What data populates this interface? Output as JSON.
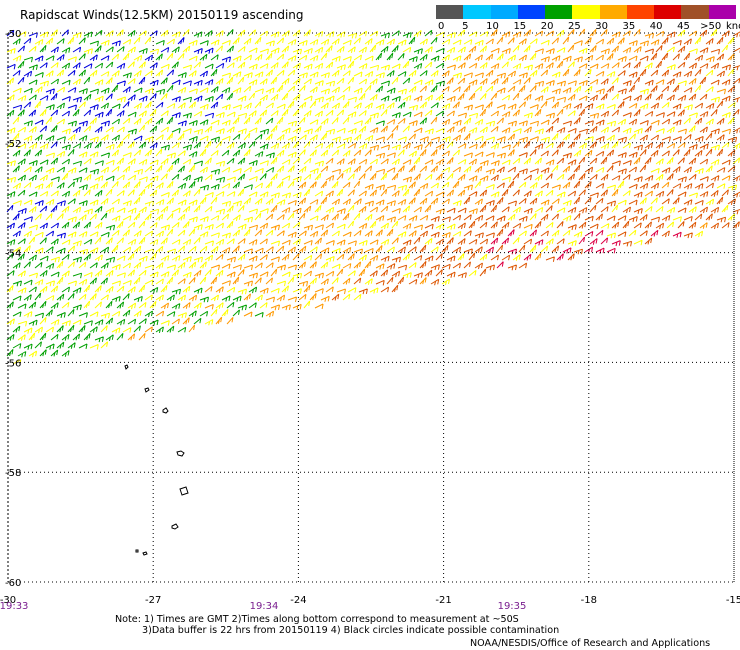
{
  "title": "Rapidscat Winds(12.5KM) 20150119 ascending",
  "legend": {
    "labels": [
      "0",
      "5",
      "10",
      "15",
      "20",
      "25",
      "30",
      "35",
      "40",
      "45",
      ">50"
    ],
    "unit": "knots",
    "colors": [
      "#555555",
      "#00c8ff",
      "#00aaff",
      "#0044ff",
      "#00a000",
      "#ffff00",
      "#ffaa00",
      "#ff4400",
      "#dd0000",
      "#a05028",
      "#aa00aa"
    ]
  },
  "axes": {
    "lon_labels": [
      "-30",
      "-27",
      "-24",
      "-21",
      "-18",
      "-15"
    ],
    "lat_labels": [
      "-50",
      "-52",
      "-54",
      "-56",
      "-58",
      "-60"
    ]
  },
  "times": [
    "19:33",
    "19:34",
    "19:35"
  ],
  "notes": {
    "line1": "Note: 1) Times are GMT 2)Times along bottom correspond to measurement at ~50S",
    "line2": "3)Data buffer is 22 hrs from 20150119 4) Black circles indicate possible contamination"
  },
  "credit": "NOAA/NESDIS/Office of Research and Applications",
  "wind_colors": {
    "yellow": "#ffff00",
    "orange": "#ff9900",
    "darkorange": "#dd5500",
    "red": "#dd0044",
    "green": "#00a000",
    "blue": "#0000dd",
    "black": "#000000"
  }
}
